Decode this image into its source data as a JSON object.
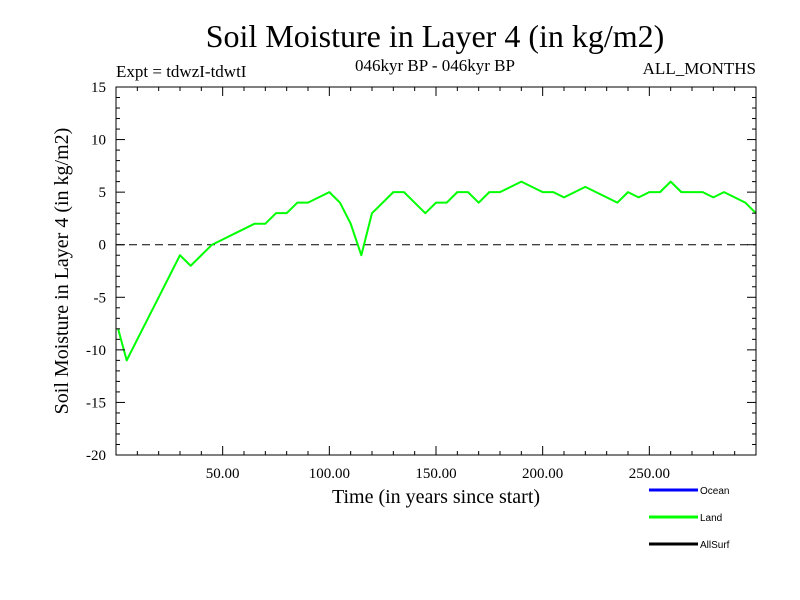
{
  "chart_data": {
    "type": "line",
    "title": "Soil Moisture in Layer 4 (in kg/m2)",
    "subtitle_left": "Expt = tdwzI-tdwtI",
    "subtitle_center": "046kyr BP - 046kyr BP",
    "subtitle_right": "ALL_MONTHS",
    "xlabel": "Time (in years since start)",
    "ylabel": "Soil Moisture in Layer 4 (in kg/m2)",
    "xlim": [
      0,
      300
    ],
    "ylim": [
      -20,
      15
    ],
    "x_ticks": [
      50,
      100,
      150,
      200,
      250
    ],
    "x_tick_labels": [
      "50.00",
      "100.00",
      "150.00",
      "200.00",
      "250.00"
    ],
    "y_ticks": [
      -20,
      -15,
      -10,
      -5,
      0,
      5,
      10,
      15
    ],
    "y_tick_labels": [
      "-20",
      "-15",
      "-10",
      "-5",
      "0",
      "5",
      "10",
      "15"
    ],
    "zero_line": "dashed",
    "grid": false,
    "legend_position": "bottom-right",
    "legend": [
      {
        "name": "Ocean",
        "color": "#0000ff"
      },
      {
        "name": "Land",
        "color": "#00ff00"
      },
      {
        "name": "AllSurf",
        "color": "#000000"
      }
    ],
    "series": [
      {
        "name": "Land",
        "color": "#00ff00",
        "x": [
          1,
          5,
          10,
          15,
          20,
          25,
          30,
          35,
          40,
          45,
          50,
          55,
          60,
          65,
          70,
          75,
          80,
          85,
          90,
          95,
          100,
          105,
          110,
          115,
          120,
          125,
          130,
          135,
          140,
          145,
          150,
          155,
          160,
          165,
          170,
          175,
          180,
          185,
          190,
          195,
          200,
          205,
          210,
          215,
          220,
          225,
          230,
          235,
          240,
          245,
          250,
          255,
          260,
          265,
          270,
          275,
          280,
          285,
          290,
          295,
          300
        ],
        "values": [
          -8,
          -11,
          -9,
          -7,
          -5,
          -3,
          -1,
          -2,
          -1,
          0,
          0.5,
          1,
          1.5,
          2,
          2,
          3,
          3,
          4,
          4,
          4.5,
          5,
          4,
          2,
          -1,
          3,
          4,
          5,
          5,
          4,
          3,
          4,
          4,
          5,
          5,
          4,
          5,
          5,
          5.5,
          6,
          5.5,
          5,
          5,
          4.5,
          5,
          5.5,
          5,
          4.5,
          4,
          5,
          4.5,
          5,
          5,
          6,
          5,
          5,
          5,
          4.5,
          5,
          4.5,
          4,
          3
        ]
      }
    ]
  }
}
